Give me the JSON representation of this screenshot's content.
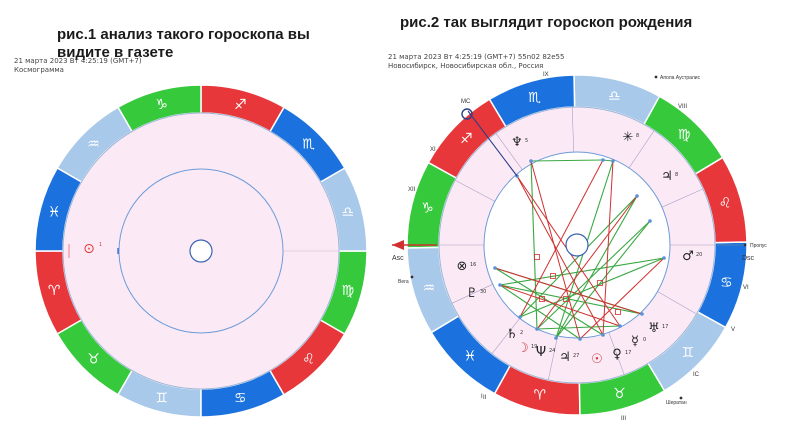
{
  "fig1": {
    "title_line1": "рис.1 анализ такого гороскопа вы",
    "title_line2": "видите  в газете",
    "date_line": "21 марта 2023  Вт   4:25:19 (GMT+7)",
    "subtitle": "Космограмма"
  },
  "fig2": {
    "title": "рис.2 так выглядит гороскоп рождения",
    "date_line": "21 марта 2023  Вт   4:25:19 (GMT+7) 55n02  82e55",
    "location": "Новосибирск, Новосибирская обл., Россия",
    "house_labels": [
      "I",
      "II",
      "III",
      "IC",
      "V",
      "VI",
      "Dsc",
      "VIII",
      "IX",
      "MC",
      "XI",
      "XII"
    ],
    "labels": {
      "asc": "Asc",
      "dsc": "Dsc",
      "vega": "Вега",
      "apola": "Апола Аустралис",
      "propus": "Пропус",
      "sherat": "Шератан"
    }
  },
  "zodiac_glyphs": [
    "♈",
    "♉",
    "♊",
    "♋",
    "♌",
    "♍",
    "♎",
    "♏",
    "♐",
    "♑",
    "♒",
    "♓"
  ],
  "colors": {
    "fire": "#e8373a",
    "earth": "#36c93b",
    "air": "#a9c9ea",
    "water": "#1b72de",
    "chart_bg": "#fbeaf6",
    "blue_line": "#5b8fd6",
    "green_aspect": "#3aa843",
    "red_aspect": "#d03030"
  },
  "planets2": [
    {
      "glyph": "♆",
      "deg": "5"
    },
    {
      "glyph": "✳",
      "deg": "8"
    },
    {
      "glyph": "♃",
      "deg": "8"
    },
    {
      "glyph": "♂",
      "deg": "20"
    },
    {
      "glyph": "⊗",
      "deg": "16"
    },
    {
      "glyph": "♇",
      "deg": "30"
    },
    {
      "glyph": "♄",
      "deg": "2"
    },
    {
      "glyph": "☽",
      "deg": "19"
    },
    {
      "glyph": "Ψ",
      "deg": "24"
    },
    {
      "glyph": "♃",
      "deg": "27"
    },
    {
      "glyph": "☉",
      "deg": ""
    },
    {
      "glyph": "♀",
      "deg": "17"
    },
    {
      "glyph": "☿",
      "deg": "0"
    },
    {
      "glyph": "♅",
      "deg": "17"
    }
  ]
}
